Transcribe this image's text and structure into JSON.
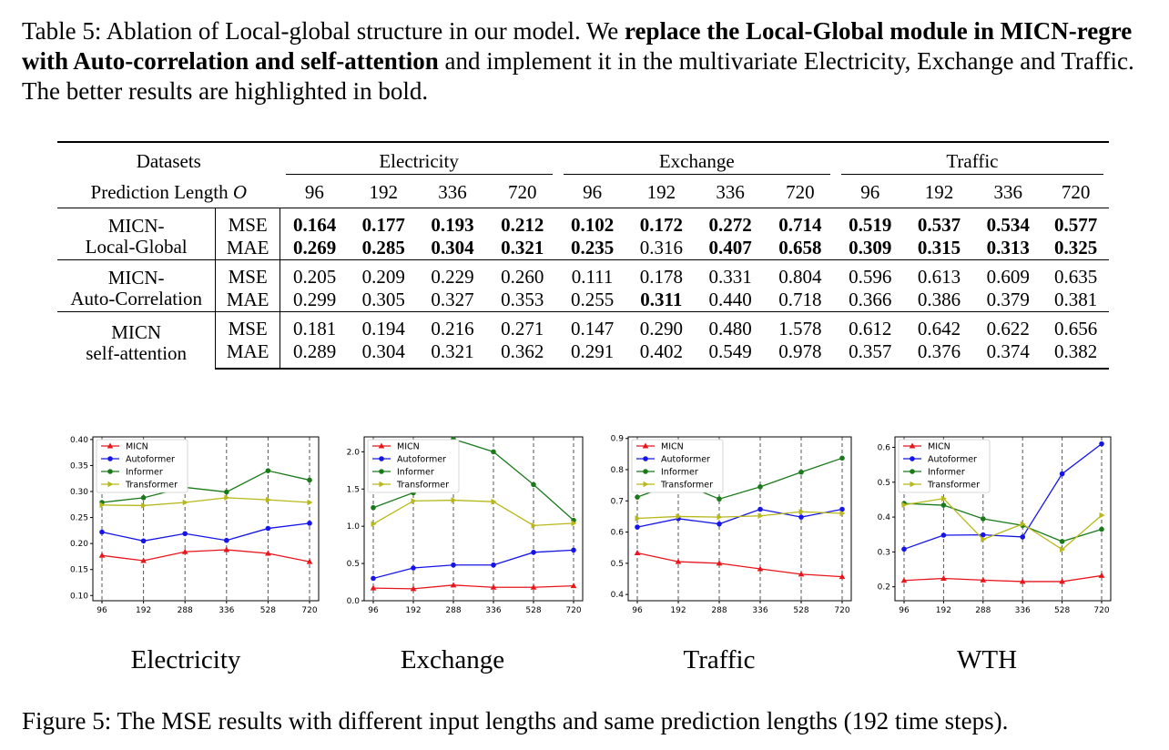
{
  "top_caption": {
    "prefix": "Table 5: Ablation of Local-global structure in our model. We ",
    "bold": "replace the Local-Global module in MICN-regre with Auto-correlation and self-attention",
    "suffix": " and implement it in the multivariate Electricity, Exchange and Traffic. The better results are highlighted in bold."
  },
  "table": {
    "datasets_label": "Datasets",
    "pred_len_label": "Prediction Length ",
    "pred_len_symbol": "O",
    "datasets": [
      "Electricity",
      "Exchange",
      "Traffic"
    ],
    "lengths": [
      "96",
      "192",
      "336",
      "720"
    ],
    "methods": [
      {
        "name_line1": "MICN-",
        "name_line2": "Local-Global",
        "mse": [
          "0.164",
          "0.177",
          "0.193",
          "0.212",
          "0.102",
          "0.172",
          "0.272",
          "0.714",
          "0.519",
          "0.537",
          "0.534",
          "0.577"
        ],
        "mae": [
          "0.269",
          "0.285",
          "0.304",
          "0.321",
          "0.235",
          "0.316",
          "0.407",
          "0.658",
          "0.309",
          "0.315",
          "0.313",
          "0.325"
        ],
        "mse_bold": [
          1,
          1,
          1,
          1,
          1,
          1,
          1,
          1,
          1,
          1,
          1,
          1
        ],
        "mae_bold": [
          1,
          1,
          1,
          1,
          1,
          0,
          1,
          1,
          1,
          1,
          1,
          1
        ]
      },
      {
        "name_line1": "MICN-",
        "name_line2": "Auto-Correlation",
        "mse": [
          "0.205",
          "0.209",
          "0.229",
          "0.260",
          "0.111",
          "0.178",
          "0.331",
          "0.804",
          "0.596",
          "0.613",
          "0.609",
          "0.635"
        ],
        "mae": [
          "0.299",
          "0.305",
          "0.327",
          "0.353",
          "0.255",
          "0.311",
          "0.440",
          "0.718",
          "0.366",
          "0.386",
          "0.379",
          "0.381"
        ],
        "mse_bold": [
          0,
          0,
          0,
          0,
          0,
          0,
          0,
          0,
          0,
          0,
          0,
          0
        ],
        "mae_bold": [
          0,
          0,
          0,
          0,
          0,
          1,
          0,
          0,
          0,
          0,
          0,
          0
        ]
      },
      {
        "name_line1": "MICN",
        "name_line2": "self-attention",
        "mse": [
          "0.181",
          "0.194",
          "0.216",
          "0.271",
          "0.147",
          "0.290",
          "0.480",
          "1.578",
          "0.612",
          "0.642",
          "0.622",
          "0.656"
        ],
        "mae": [
          "0.289",
          "0.304",
          "0.321",
          "0.362",
          "0.291",
          "0.402",
          "0.549",
          "0.978",
          "0.357",
          "0.376",
          "0.374",
          "0.382"
        ],
        "mse_bold": [
          0,
          0,
          0,
          0,
          0,
          0,
          0,
          0,
          0,
          0,
          0,
          0
        ],
        "mae_bold": [
          0,
          0,
          0,
          0,
          0,
          0,
          0,
          0,
          0,
          0,
          0,
          0
        ]
      }
    ],
    "mse_label": "MSE",
    "mae_label": "MAE"
  },
  "figure_titles": [
    "Electricity",
    "Exchange",
    "Traffic",
    "WTH"
  ],
  "bottom_caption": "Figure 5: The MSE results with different input lengths and same prediction lengths (192 time steps).",
  "chart_data": [
    {
      "type": "line",
      "title": "Electricity",
      "x": [
        "96",
        "192",
        "288",
        "336",
        "528",
        "720"
      ],
      "ylim": [
        0.09,
        0.405
      ],
      "yticks": [
        "0.10",
        "0.15",
        "0.20",
        "0.25",
        "0.30",
        "0.35",
        "0.40"
      ],
      "ytick_values": [
        0.1,
        0.15,
        0.2,
        0.25,
        0.3,
        0.35,
        0.4
      ],
      "grid": "vertical dashed",
      "legend": "top-left",
      "series": [
        {
          "name": "MICN",
          "color": "#e8151b",
          "marker": "triangle",
          "values": [
            0.177,
            0.167,
            0.184,
            0.188,
            0.181,
            0.165
          ]
        },
        {
          "name": "Autoformer",
          "color": "#1515e8",
          "marker": "circle",
          "values": [
            0.222,
            0.205,
            0.219,
            0.206,
            0.229,
            0.239
          ]
        },
        {
          "name": "Informer",
          "color": "#1a7a1a",
          "marker": "circle",
          "values": [
            0.279,
            0.288,
            0.308,
            0.299,
            0.34,
            0.322
          ]
        },
        {
          "name": "Transformer",
          "color": "#b8b81a",
          "marker": "triangle-right",
          "values": [
            0.274,
            0.273,
            0.279,
            0.288,
            0.284,
            0.279
          ]
        }
      ]
    },
    {
      "type": "line",
      "title": "Exchange",
      "x": [
        "96",
        "192",
        "288",
        "336",
        "528",
        "720"
      ],
      "ylim": [
        0.0,
        2.2
      ],
      "yticks": [
        "0.0",
        "0.5",
        "1.0",
        "1.5",
        "2.0"
      ],
      "ytick_values": [
        0.0,
        0.5,
        1.0,
        1.5,
        2.0
      ],
      "grid": "vertical dashed",
      "legend": "top-left",
      "series": [
        {
          "name": "MICN",
          "color": "#e8151b",
          "marker": "triangle",
          "values": [
            0.17,
            0.16,
            0.21,
            0.18,
            0.18,
            0.2
          ]
        },
        {
          "name": "Autoformer",
          "color": "#1515e8",
          "marker": "circle",
          "values": [
            0.3,
            0.44,
            0.48,
            0.48,
            0.65,
            0.68
          ]
        },
        {
          "name": "Informer",
          "color": "#1a7a1a",
          "marker": "circle",
          "values": [
            1.25,
            1.45,
            2.17,
            2.0,
            1.56,
            1.08
          ]
        },
        {
          "name": "Transformer",
          "color": "#b8b81a",
          "marker": "triangle-right",
          "values": [
            1.03,
            1.34,
            1.35,
            1.33,
            1.01,
            1.04
          ]
        }
      ]
    },
    {
      "type": "line",
      "title": "Traffic",
      "x": [
        "96",
        "192",
        "288",
        "336",
        "528",
        "720"
      ],
      "ylim": [
        0.38,
        0.905
      ],
      "yticks": [
        "0.4",
        "0.5",
        "0.6",
        "0.7",
        "0.8",
        "0.9"
      ],
      "ytick_values": [
        0.4,
        0.5,
        0.6,
        0.7,
        0.8,
        0.9
      ],
      "grid": "vertical dashed",
      "legend": "top-left",
      "series": [
        {
          "name": "MICN",
          "color": "#e8151b",
          "marker": "triangle",
          "values": [
            0.533,
            0.505,
            0.5,
            0.482,
            0.465,
            0.457
          ]
        },
        {
          "name": "Autoformer",
          "color": "#1515e8",
          "marker": "circle",
          "values": [
            0.616,
            0.643,
            0.626,
            0.673,
            0.648,
            0.673
          ]
        },
        {
          "name": "Informer",
          "color": "#1a7a1a",
          "marker": "circle",
          "values": [
            0.712,
            0.76,
            0.706,
            0.745,
            0.792,
            0.837
          ]
        },
        {
          "name": "Transformer",
          "color": "#b8b81a",
          "marker": "triangle-right",
          "values": [
            0.644,
            0.65,
            0.648,
            0.652,
            0.665,
            0.66
          ]
        }
      ]
    },
    {
      "type": "line",
      "title": "WTH",
      "x": [
        "96",
        "192",
        "288",
        "336",
        "528",
        "720"
      ],
      "ylim": [
        0.16,
        0.63
      ],
      "yticks": [
        "0.2",
        "0.3",
        "0.4",
        "0.5",
        "0.6"
      ],
      "ytick_values": [
        0.2,
        0.3,
        0.4,
        0.5,
        0.6
      ],
      "grid": "vertical dashed",
      "legend": "top-left",
      "series": [
        {
          "name": "MICN",
          "color": "#e8151b",
          "marker": "triangle",
          "values": [
            0.218,
            0.224,
            0.219,
            0.215,
            0.215,
            0.232
          ]
        },
        {
          "name": "Autoformer",
          "color": "#1515e8",
          "marker": "circle",
          "values": [
            0.308,
            0.348,
            0.349,
            0.343,
            0.524,
            0.61
          ]
        },
        {
          "name": "Informer",
          "color": "#1a7a1a",
          "marker": "circle",
          "values": [
            0.439,
            0.434,
            0.395,
            0.376,
            0.33,
            0.365
          ]
        },
        {
          "name": "Transformer",
          "color": "#b8b81a",
          "marker": "triangle-right",
          "values": [
            0.435,
            0.453,
            0.336,
            0.38,
            0.307,
            0.405
          ]
        }
      ]
    }
  ]
}
